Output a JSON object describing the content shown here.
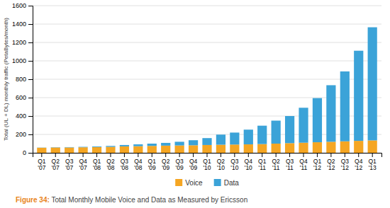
{
  "chart_data": {
    "type": "bar",
    "stacked": true,
    "categories": [
      "Q1\n'07",
      "Q2\n'07",
      "Q3\n'07",
      "Q4\n'07",
      "Q1\n'08",
      "Q2\n'08",
      "Q3\n'08",
      "Q4\n'08",
      "Q1\n'09",
      "Q2\n'09",
      "Q3\n'09",
      "Q4\n'09",
      "Q1\n'10",
      "Q2\n'10",
      "Q3\n'10",
      "Q4\n'10",
      "Q1\n'11",
      "Q2\n'11",
      "Q3\n'11",
      "Q4\n'11",
      "Q1\n'12",
      "Q2\n'12",
      "Q3\n'12",
      "Q4\n'12",
      "Q1\n'13"
    ],
    "series": [
      {
        "name": "Voice",
        "color": "#F5A623",
        "values": [
          55,
          58,
          58,
          60,
          62,
          65,
          70,
          72,
          75,
          78,
          80,
          82,
          85,
          88,
          90,
          92,
          95,
          100,
          105,
          110,
          115,
          120,
          125,
          130,
          135
        ]
      },
      {
        "name": "Data",
        "color": "#3BA3D8",
        "values": [
          2,
          3,
          4,
          5,
          7,
          10,
          15,
          20,
          25,
          30,
          40,
          55,
          75,
          110,
          130,
          160,
          200,
          250,
          295,
          380,
          480,
          615,
          760,
          980,
          1230
        ]
      }
    ],
    "ylabel": "Total (UL + DL) monthly traffic (PetaBytes/month)",
    "ylim": [
      0,
      1600
    ],
    "yticks": [
      0,
      200,
      400,
      600,
      800,
      1000,
      1200,
      1400,
      1600
    ],
    "grid": true,
    "legend": "bottom",
    "annotations": [
      {
        "text": "Figure 34:",
        "color": "#E8821A"
      },
      {
        "text": " Total Monthly Mobile Voice and Data as Measured by Ericsson",
        "color": "#444444"
      }
    ]
  }
}
